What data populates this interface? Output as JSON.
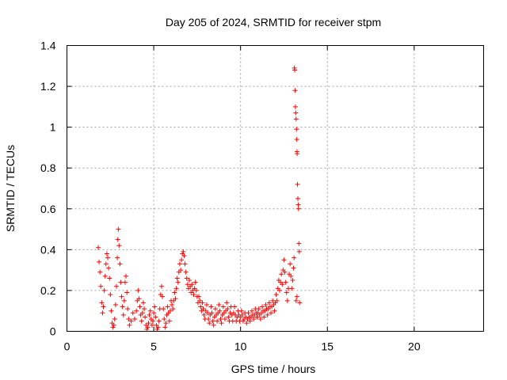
{
  "chart_data": {
    "type": "scatter",
    "title": "Day 205 of 2024, SRMTID for receiver stpm",
    "xlabel": "GPS time / hours",
    "ylabel": "SRMTID / TECUs",
    "xlim": [
      0,
      24
    ],
    "ylim": [
      0,
      1.4
    ],
    "xticks": [
      0,
      5,
      10,
      15,
      20
    ],
    "yticks": [
      0,
      0.2,
      0.4,
      0.6,
      0.8,
      1,
      1.2,
      1.4
    ],
    "xtick_labels": [
      "0",
      "5",
      "10",
      "15",
      "20"
    ],
    "ytick_labels": [
      "0",
      "0.2",
      "0.4",
      "0.6",
      "0.8",
      "1",
      "1.2",
      "1.4"
    ],
    "grid": true,
    "marker": "+",
    "color": "#ff0000",
    "series": [
      {
        "name": "SRMTID",
        "points": [
          [
            1.8,
            0.41
          ],
          [
            1.85,
            0.34
          ],
          [
            1.9,
            0.29
          ],
          [
            1.95,
            0.22
          ],
          [
            2.0,
            0.14
          ],
          [
            2.05,
            0.09
          ],
          [
            2.1,
            0.12
          ],
          [
            2.15,
            0.2
          ],
          [
            2.2,
            0.27
          ],
          [
            2.25,
            0.33
          ],
          [
            2.3,
            0.38
          ],
          [
            2.35,
            0.36
          ],
          [
            2.4,
            0.31
          ],
          [
            2.45,
            0.26
          ],
          [
            2.5,
            0.18
          ],
          [
            2.55,
            0.1
          ],
          [
            2.6,
            0.04
          ],
          [
            2.65,
            0.02
          ],
          [
            2.7,
            0.03
          ],
          [
            2.75,
            0.06
          ],
          [
            2.8,
            0.13
          ],
          [
            2.85,
            0.22
          ],
          [
            2.9,
            0.36
          ],
          [
            2.93,
            0.45
          ],
          [
            2.96,
            0.5
          ],
          [
            3.0,
            0.42
          ],
          [
            3.05,
            0.33
          ],
          [
            3.1,
            0.24
          ],
          [
            3.15,
            0.17
          ],
          [
            3.2,
            0.12
          ],
          [
            3.25,
            0.08
          ],
          [
            3.3,
            0.15
          ],
          [
            3.35,
            0.24
          ],
          [
            3.4,
            0.27
          ],
          [
            3.45,
            0.19
          ],
          [
            3.5,
            0.11
          ],
          [
            3.55,
            0.06
          ],
          [
            3.6,
            0.03
          ],
          [
            3.7,
            0.05
          ],
          [
            3.8,
            0.09
          ],
          [
            3.9,
            0.06
          ],
          [
            4.0,
            0.1
          ],
          [
            4.05,
            0.15
          ],
          [
            4.1,
            0.2
          ],
          [
            4.15,
            0.16
          ],
          [
            4.2,
            0.12
          ],
          [
            4.25,
            0.08
          ],
          [
            4.3,
            0.05
          ],
          [
            4.35,
            0.09
          ],
          [
            4.4,
            0.14
          ],
          [
            4.45,
            0.11
          ],
          [
            4.5,
            0.07
          ],
          [
            4.55,
            0.03
          ],
          [
            4.6,
            0.01
          ],
          [
            4.65,
            0.02
          ],
          [
            4.7,
            0.04
          ],
          [
            4.75,
            0.08
          ],
          [
            4.8,
            0.1
          ],
          [
            4.85,
            0.06
          ],
          [
            4.9,
            0.03
          ],
          [
            4.95,
            0.05
          ],
          [
            5.0,
            0.09
          ],
          [
            5.05,
            0.12
          ],
          [
            5.1,
            0.07
          ],
          [
            5.15,
            0.03
          ],
          [
            5.2,
            0.01
          ],
          [
            5.25,
            0.02
          ],
          [
            5.3,
            0.05
          ],
          [
            5.35,
            0.11
          ],
          [
            5.4,
            0.18
          ],
          [
            5.45,
            0.22
          ],
          [
            5.5,
            0.17
          ],
          [
            5.55,
            0.11
          ],
          [
            5.6,
            0.06
          ],
          [
            5.65,
            0.02
          ],
          [
            5.7,
            0.04
          ],
          [
            5.75,
            0.08
          ],
          [
            5.8,
            0.12
          ],
          [
            5.85,
            0.09
          ],
          [
            5.9,
            0.05
          ],
          [
            5.95,
            0.1
          ],
          [
            6.0,
            0.15
          ],
          [
            6.05,
            0.13
          ],
          [
            6.1,
            0.11
          ],
          [
            6.15,
            0.15
          ],
          [
            6.2,
            0.19
          ],
          [
            6.25,
            0.16
          ],
          [
            6.3,
            0.21
          ],
          [
            6.35,
            0.26
          ],
          [
            6.4,
            0.24
          ],
          [
            6.45,
            0.29
          ],
          [
            6.5,
            0.33
          ],
          [
            6.55,
            0.3
          ],
          [
            6.6,
            0.35
          ],
          [
            6.65,
            0.38
          ],
          [
            6.7,
            0.39
          ],
          [
            6.75,
            0.37
          ],
          [
            6.8,
            0.33
          ],
          [
            6.85,
            0.29
          ],
          [
            6.9,
            0.26
          ],
          [
            6.95,
            0.23
          ],
          [
            7.0,
            0.21
          ],
          [
            7.05,
            0.25
          ],
          [
            7.1,
            0.22
          ],
          [
            7.15,
            0.19
          ],
          [
            7.2,
            0.23
          ],
          [
            7.25,
            0.2
          ],
          [
            7.3,
            0.18
          ],
          [
            7.35,
            0.21
          ],
          [
            7.4,
            0.24
          ],
          [
            7.45,
            0.2
          ],
          [
            7.5,
            0.17
          ],
          [
            7.55,
            0.14
          ],
          [
            7.6,
            0.17
          ],
          [
            7.65,
            0.15
          ],
          [
            7.7,
            0.12
          ],
          [
            7.75,
            0.1
          ],
          [
            7.8,
            0.14
          ],
          [
            7.85,
            0.11
          ],
          [
            7.9,
            0.08
          ],
          [
            7.95,
            0.06
          ],
          [
            8.0,
            0.1
          ],
          [
            8.05,
            0.13
          ],
          [
            8.1,
            0.09
          ],
          [
            8.15,
            0.06
          ],
          [
            8.2,
            0.04
          ],
          [
            8.25,
            0.08
          ],
          [
            8.3,
            0.12
          ],
          [
            8.35,
            0.09
          ],
          [
            8.4,
            0.05
          ],
          [
            8.45,
            0.03
          ],
          [
            8.5,
            0.07
          ],
          [
            8.55,
            0.11
          ],
          [
            8.6,
            0.08
          ],
          [
            8.65,
            0.05
          ],
          [
            8.7,
            0.09
          ],
          [
            8.75,
            0.13
          ],
          [
            8.8,
            0.1
          ],
          [
            8.85,
            0.06
          ],
          [
            8.9,
            0.04
          ],
          [
            8.95,
            0.08
          ],
          [
            9.0,
            0.12
          ],
          [
            9.05,
            0.09
          ],
          [
            9.1,
            0.06
          ],
          [
            9.15,
            0.1
          ],
          [
            9.2,
            0.14
          ],
          [
            9.25,
            0.11
          ],
          [
            9.3,
            0.07
          ],
          [
            9.35,
            0.05
          ],
          [
            9.4,
            0.09
          ],
          [
            9.45,
            0.12
          ],
          [
            9.5,
            0.08
          ],
          [
            9.55,
            0.05
          ],
          [
            9.6,
            0.09
          ],
          [
            9.65,
            0.12
          ],
          [
            9.7,
            0.08
          ],
          [
            9.75,
            0.05
          ],
          [
            9.8,
            0.07
          ],
          [
            9.85,
            0.1
          ],
          [
            9.9,
            0.08
          ],
          [
            9.95,
            0.05
          ],
          [
            10.0,
            0.07
          ],
          [
            10.05,
            0.1
          ],
          [
            10.1,
            0.08
          ],
          [
            10.15,
            0.05
          ],
          [
            10.2,
            0.06
          ],
          [
            10.25,
            0.09
          ],
          [
            10.3,
            0.07
          ],
          [
            10.35,
            0.04
          ],
          [
            10.4,
            0.06
          ],
          [
            10.45,
            0.09
          ],
          [
            10.5,
            0.07
          ],
          [
            10.55,
            0.05
          ],
          [
            10.6,
            0.07
          ],
          [
            10.65,
            0.1
          ],
          [
            10.7,
            0.08
          ],
          [
            10.75,
            0.06
          ],
          [
            10.8,
            0.08
          ],
          [
            10.85,
            0.11
          ],
          [
            10.9,
            0.09
          ],
          [
            10.95,
            0.07
          ],
          [
            11.0,
            0.09
          ],
          [
            11.05,
            0.11
          ],
          [
            11.1,
            0.08
          ],
          [
            11.15,
            0.06
          ],
          [
            11.2,
            0.09
          ],
          [
            11.25,
            0.12
          ],
          [
            11.3,
            0.1
          ],
          [
            11.35,
            0.07
          ],
          [
            11.4,
            0.1
          ],
          [
            11.45,
            0.13
          ],
          [
            11.5,
            0.11
          ],
          [
            11.55,
            0.08
          ],
          [
            11.6,
            0.11
          ],
          [
            11.65,
            0.14
          ],
          [
            11.7,
            0.12
          ],
          [
            11.75,
            0.09
          ],
          [
            11.8,
            0.12
          ],
          [
            11.85,
            0.15
          ],
          [
            11.9,
            0.13
          ],
          [
            11.95,
            0.1
          ],
          [
            12.0,
            0.14
          ],
          [
            12.05,
            0.18
          ],
          [
            12.1,
            0.15
          ],
          [
            12.15,
            0.21
          ],
          [
            12.2,
            0.25
          ],
          [
            12.25,
            0.2
          ],
          [
            12.3,
            0.24
          ],
          [
            12.35,
            0.28
          ],
          [
            12.4,
            0.23
          ],
          [
            12.45,
            0.3
          ],
          [
            12.5,
            0.35
          ],
          [
            12.55,
            0.29
          ],
          [
            12.6,
            0.24
          ],
          [
            12.65,
            0.19
          ],
          [
            12.7,
            0.15
          ],
          [
            12.75,
            0.21
          ],
          [
            12.8,
            0.28
          ],
          [
            12.85,
            0.33
          ],
          [
            12.9,
            0.27
          ],
          [
            12.95,
            0.21
          ],
          [
            13.0,
            0.25
          ],
          [
            13.05,
            0.31
          ],
          [
            13.08,
            0.36
          ],
          [
            13.1,
            1.29
          ],
          [
            13.12,
            1.28
          ],
          [
            13.14,
            1.18
          ],
          [
            13.16,
            1.1
          ],
          [
            13.18,
            1.07
          ],
          [
            13.2,
            1.04
          ],
          [
            13.22,
            0.99
          ],
          [
            13.24,
            0.94
          ],
          [
            13.25,
            0.88
          ],
          [
            13.26,
            0.87
          ],
          [
            13.28,
            0.72
          ],
          [
            13.3,
            0.65
          ],
          [
            13.32,
            0.62
          ],
          [
            13.34,
            0.6
          ],
          [
            13.36,
            0.43
          ],
          [
            13.38,
            0.39
          ],
          [
            13.4,
            0.14
          ],
          [
            13.2,
            0.15
          ],
          [
            13.25,
            0.17
          ]
        ]
      }
    ]
  }
}
